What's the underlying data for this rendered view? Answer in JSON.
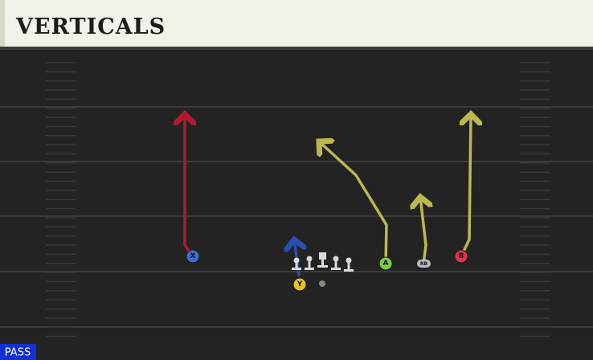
{
  "header": {
    "title": "VERTICALS"
  },
  "players": [
    {
      "label": "X"
    },
    {
      "label": "Y"
    },
    {
      "label": "A"
    },
    {
      "label": "RB"
    },
    {
      "label": "B"
    }
  ],
  "play_type": "PASS"
}
